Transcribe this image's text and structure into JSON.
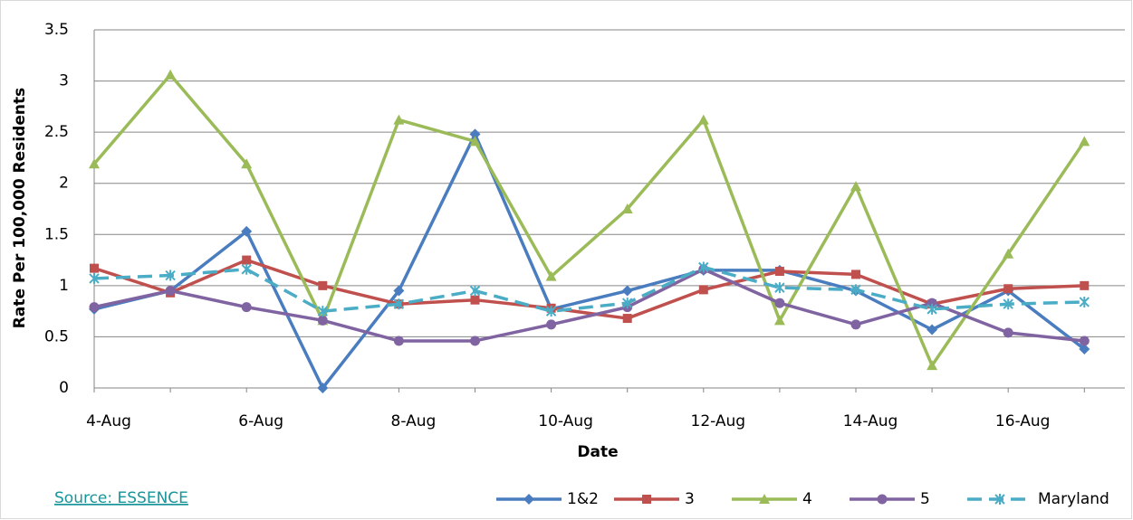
{
  "chart_data": {
    "type": "line",
    "x_label": "Date",
    "y_label": "Rate Per 100,000 Residents",
    "source": "Source: ESSENCE",
    "categories": [
      "4-Aug",
      null,
      "6-Aug",
      null,
      "8-Aug",
      null,
      "10-Aug",
      null,
      "12-Aug",
      null,
      "14-Aug",
      null,
      "16-Aug",
      null
    ],
    "series": [
      {
        "name": "1&2",
        "color": "#4a7dbf",
        "marker": "diamond",
        "values": [
          0.77,
          0.95,
          1.53,
          0.0,
          0.95,
          2.48,
          0.77,
          0.95,
          1.15,
          1.15,
          0.95,
          0.57,
          0.95,
          0.38
        ]
      },
      {
        "name": "3",
        "color": "#c0504d",
        "marker": "square",
        "values": [
          1.17,
          0.93,
          1.25,
          1.0,
          0.82,
          0.86,
          0.78,
          0.68,
          0.96,
          1.14,
          1.11,
          0.82,
          0.97,
          1.0
        ]
      },
      {
        "name": "4",
        "color": "#9bbb59",
        "marker": "triangle",
        "values": [
          2.19,
          3.06,
          2.19,
          0.66,
          2.62,
          2.41,
          1.09,
          1.75,
          2.62,
          0.66,
          1.97,
          0.22,
          1.31,
          2.41
        ]
      },
      {
        "name": "5",
        "color": "#8064a2",
        "marker": "circle",
        "values": [
          0.79,
          0.95,
          0.79,
          0.66,
          0.46,
          0.46,
          0.62,
          0.79,
          1.16,
          0.83,
          0.62,
          0.83,
          0.54,
          0.46
        ]
      },
      {
        "name": "Maryland",
        "color": "#4bacc6",
        "marker": "star",
        "dashed": true,
        "values": [
          1.07,
          1.1,
          1.16,
          0.75,
          0.82,
          0.95,
          0.75,
          0.83,
          1.18,
          0.98,
          0.96,
          0.77,
          0.82,
          0.84
        ]
      }
    ],
    "ylim": [
      0,
      3.5
    ],
    "yticks": [
      0,
      0.5,
      1,
      1.5,
      2,
      2.5,
      3,
      3.5
    ],
    "grid": true,
    "legend": "bottom-right"
  }
}
